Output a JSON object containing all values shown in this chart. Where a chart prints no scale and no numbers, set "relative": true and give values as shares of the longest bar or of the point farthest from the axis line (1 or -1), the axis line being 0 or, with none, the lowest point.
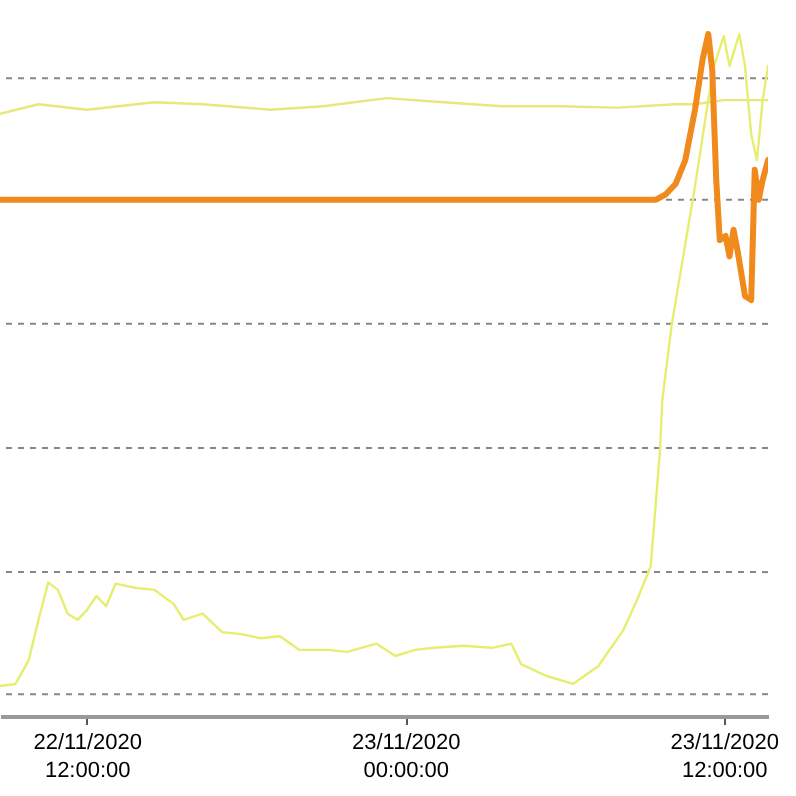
{
  "chart_data": {
    "type": "line",
    "relative": true,
    "line_style": "solid",
    "marker": "none",
    "xlim": [
      "2020-11-22T08:44",
      "2020-11-23T13:40"
    ],
    "xticks": [
      {
        "value": "2020-11-22T12:00",
        "label": "22/11/2020 12:00:00"
      },
      {
        "value": "2020-11-23T00:00",
        "label": "23/11/2020 00:00:00"
      },
      {
        "value": "2020-11-23T12:00",
        "label": "23/11/2020 12:00:00"
      }
    ],
    "ref_lines": [
      {
        "axis": "y",
        "value": 0.032,
        "color": "#888888",
        "line_style": "dashed"
      },
      {
        "axis": "y",
        "value": 0.211,
        "color": "#888888",
        "line_style": "dashed"
      },
      {
        "axis": "y",
        "value": 0.393,
        "color": "#888888",
        "line_style": "dashed"
      },
      {
        "axis": "y",
        "value": 0.575,
        "color": "#888888",
        "line_style": "dashed"
      },
      {
        "axis": "y",
        "value": 0.757,
        "color": "#888888",
        "line_style": "dashed"
      },
      {
        "axis": "y",
        "value": 0.935,
        "color": "#888888",
        "line_style": "dashed"
      }
    ],
    "series": [
      {
        "color": "#e9e67e",
        "x": [
          "2020-11-22T08:44",
          "2020-11-22T10:11",
          "2020-11-22T12:00",
          "2020-11-22T14:33",
          "2020-11-22T16:22",
          "2020-11-22T18:55",
          "2020-11-22T20:55",
          "2020-11-22T23:17",
          "2020-11-23T01:27",
          "2020-11-23T03:38",
          "2020-11-23T05:49",
          "2020-11-23T08:00",
          "2020-11-23T10:11",
          "2020-11-23T10:55",
          "2020-11-23T12:00",
          "2020-11-23T13:40"
        ],
        "values": [
          0.883,
          0.897,
          0.889,
          0.9,
          0.897,
          0.889,
          0.894,
          0.906,
          0.9,
          0.894,
          0.894,
          0.892,
          0.897,
          0.897,
          0.903,
          0.903
        ]
      },
      {
        "color": "#e6ee70",
        "x": [
          "2020-11-22T08:44",
          "2020-11-22T09:19",
          "2020-11-22T09:49",
          "2020-11-22T10:11",
          "2020-11-22T10:33",
          "2020-11-22T10:55",
          "2020-11-22T11:17",
          "2020-11-22T11:39",
          "2020-11-22T12:00",
          "2020-11-22T12:22",
          "2020-11-22T12:44",
          "2020-11-22T13:05",
          "2020-11-22T13:49",
          "2020-11-22T14:33",
          "2020-11-22T15:17",
          "2020-11-22T15:39",
          "2020-11-22T16:22",
          "2020-11-22T17:06",
          "2020-11-22T17:49",
          "2020-11-22T18:33",
          "2020-11-22T19:17",
          "2020-11-22T20:00",
          "2020-11-22T21:05",
          "2020-11-22T21:49",
          "2020-11-22T22:55",
          "2020-11-22T23:38",
          "2020-11-23T00:22",
          "2020-11-23T01:05",
          "2020-11-23T02:11",
          "2020-11-23T03:16",
          "2020-11-23T04:00",
          "2020-11-23T04:22",
          "2020-11-23T05:18",
          "2020-11-23T06:19",
          "2020-11-23T07:16",
          "2020-11-23T08:13",
          "2020-11-23T08:44",
          "2020-11-23T09:15",
          "2020-11-23T09:36",
          "2020-11-23T09:41",
          "2020-11-23T10:02",
          "2020-11-23T10:55",
          "2020-11-23T11:25",
          "2020-11-23T11:38",
          "2020-11-23T12:00",
          "2020-11-23T12:13",
          "2020-11-23T12:35",
          "2020-11-23T12:48",
          "2020-11-23T13:02",
          "2020-11-23T13:15",
          "2020-11-23T13:28",
          "2020-11-23T13:40"
        ],
        "values": [
          0.044,
          0.047,
          0.082,
          0.141,
          0.196,
          0.185,
          0.15,
          0.141,
          0.155,
          0.176,
          0.161,
          0.194,
          0.188,
          0.185,
          0.164,
          0.141,
          0.15,
          0.123,
          0.12,
          0.114,
          0.117,
          0.097,
          0.097,
          0.094,
          0.106,
          0.088,
          0.097,
          0.1,
          0.103,
          0.1,
          0.106,
          0.076,
          0.059,
          0.047,
          0.073,
          0.126,
          0.17,
          0.22,
          0.39,
          0.463,
          0.572,
          0.777,
          0.903,
          0.953,
          0.997,
          0.953,
          1.0,
          0.953,
          0.853,
          0.815,
          0.903,
          0.953
        ]
      },
      {
        "color": "#f08a1c",
        "x": [
          "2020-11-22T08:44",
          "2020-11-22T16:00",
          "2020-11-23T00:00",
          "2020-11-23T06:33",
          "2020-11-23T09:27",
          "2020-11-23T09:49",
          "2020-11-23T10:11",
          "2020-11-23T10:33",
          "2020-11-23T10:55",
          "2020-11-23T11:12",
          "2020-11-23T11:25",
          "2020-11-23T11:34",
          "2020-11-23T11:43",
          "2020-11-23T11:51",
          "2020-11-23T12:04",
          "2020-11-23T12:13",
          "2020-11-23T12:22",
          "2020-11-23T12:31",
          "2020-11-23T12:48",
          "2020-11-23T13:02",
          "2020-11-23T13:10",
          "2020-11-23T13:19",
          "2020-11-23T13:28",
          "2020-11-23T13:40"
        ],
        "values": [
          0.757,
          0.757,
          0.757,
          0.757,
          0.757,
          0.765,
          0.78,
          0.815,
          0.889,
          0.962,
          1.0,
          0.947,
          0.786,
          0.698,
          0.704,
          0.674,
          0.713,
          0.683,
          0.616,
          0.61,
          0.801,
          0.757,
          0.786,
          0.815
        ]
      }
    ]
  }
}
